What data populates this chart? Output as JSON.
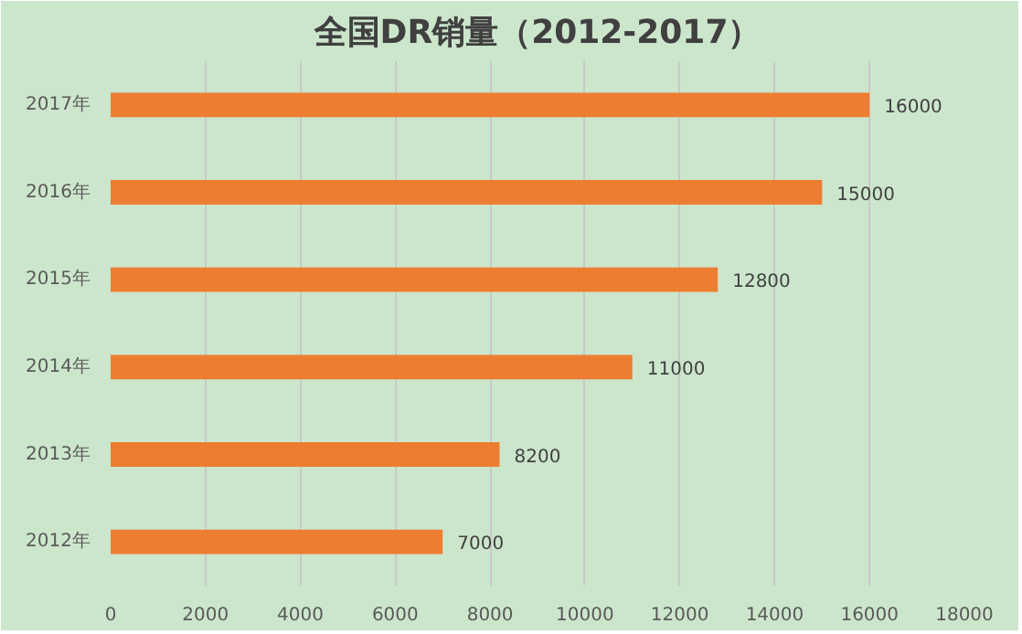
{
  "chart_data": {
    "type": "bar",
    "orientation": "horizontal",
    "title": "全国DR销量（2012-2017）",
    "categories": [
      "2017年",
      "2016年",
      "2015年",
      "2014年",
      "2013年",
      "2012年"
    ],
    "values": [
      16000,
      15000,
      12800,
      11000,
      8200,
      7000
    ],
    "color": "#ed7d31",
    "xlim": [
      0,
      18000
    ],
    "xticks": [
      0,
      2000,
      4000,
      6000,
      8000,
      10000,
      12000,
      14000,
      16000,
      18000
    ],
    "grid": "x",
    "data_labels": true
  }
}
